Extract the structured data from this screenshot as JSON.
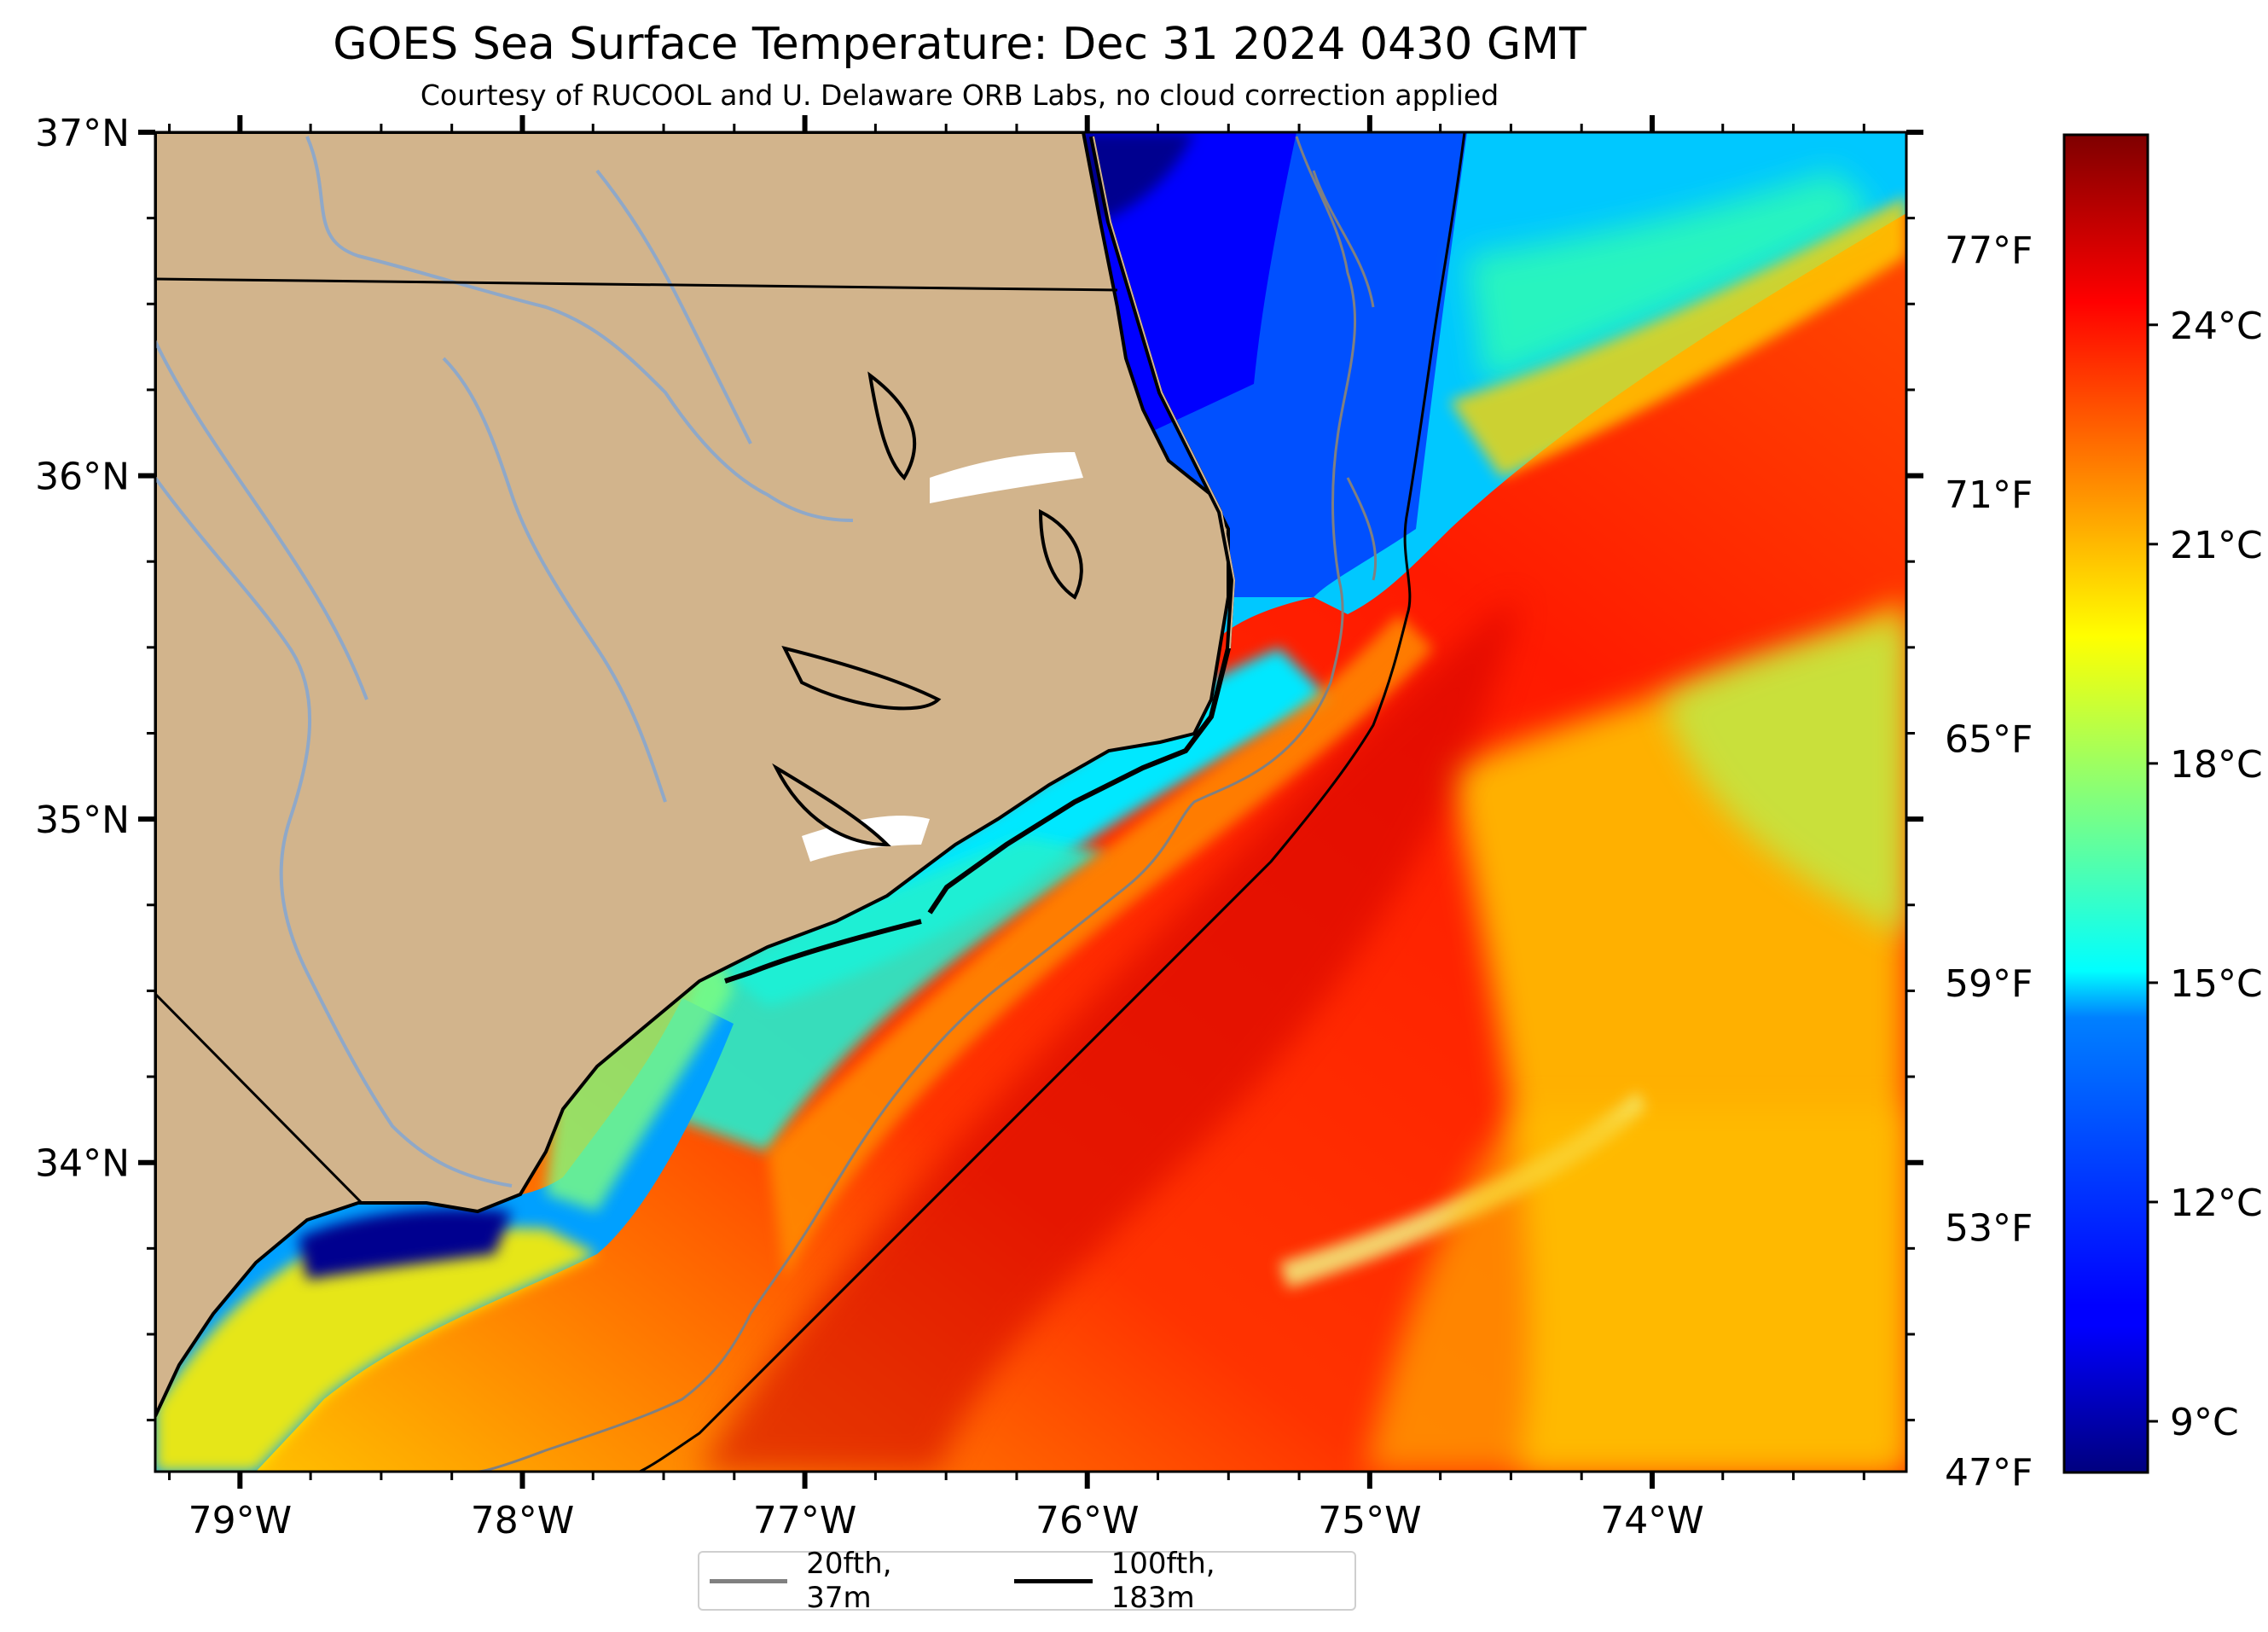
{
  "title": "GOES Sea Surface Temperature: Dec 31 2024 0430 GMT",
  "subtitle": "Courtesy of RUCOOL and U. Delaware ORB Labs, no cloud correction applied",
  "map": {
    "extent_lon": [
      -79.3,
      -73.1
    ],
    "extent_lat": [
      33.1,
      37.0
    ],
    "land_color": "#d2b48c",
    "lat_ticks": [
      {
        "value": 37,
        "label": "37°N"
      },
      {
        "value": 36,
        "label": "36°N"
      },
      {
        "value": 35,
        "label": "35°N"
      },
      {
        "value": 34,
        "label": "34°N"
      }
    ],
    "lon_ticks": [
      {
        "value": -79,
        "label": "79°W"
      },
      {
        "value": -78,
        "label": "78°W"
      },
      {
        "value": -77,
        "label": "77°W"
      },
      {
        "value": -76,
        "label": "76°W"
      },
      {
        "value": -75,
        "label": "75°W"
      },
      {
        "value": -74,
        "label": "74°W"
      }
    ],
    "fahrenheit_ticks": [
      {
        "value": 77,
        "label": "77°F"
      },
      {
        "value": 71,
        "label": "71°F"
      },
      {
        "value": 65,
        "label": "65°F"
      },
      {
        "value": 59,
        "label": "59°F"
      },
      {
        "value": 53,
        "label": "53°F"
      },
      {
        "value": 47,
        "label": "47°F"
      }
    ]
  },
  "colorbar": {
    "colormap": "jet",
    "range_c": [
      8.3,
      26.6
    ],
    "ticks": [
      {
        "value": 24,
        "label": "24°C"
      },
      {
        "value": 21,
        "label": "21°C"
      },
      {
        "value": 18,
        "label": "18°C"
      },
      {
        "value": 15,
        "label": "15°C"
      },
      {
        "value": 12,
        "label": "12°C"
      },
      {
        "value": 9,
        "label": "9°C"
      }
    ]
  },
  "legend": [
    {
      "label": "20fth, 37m",
      "color": "#808080"
    },
    {
      "label": "100fth, 183m",
      "color": "#000000"
    }
  ]
}
